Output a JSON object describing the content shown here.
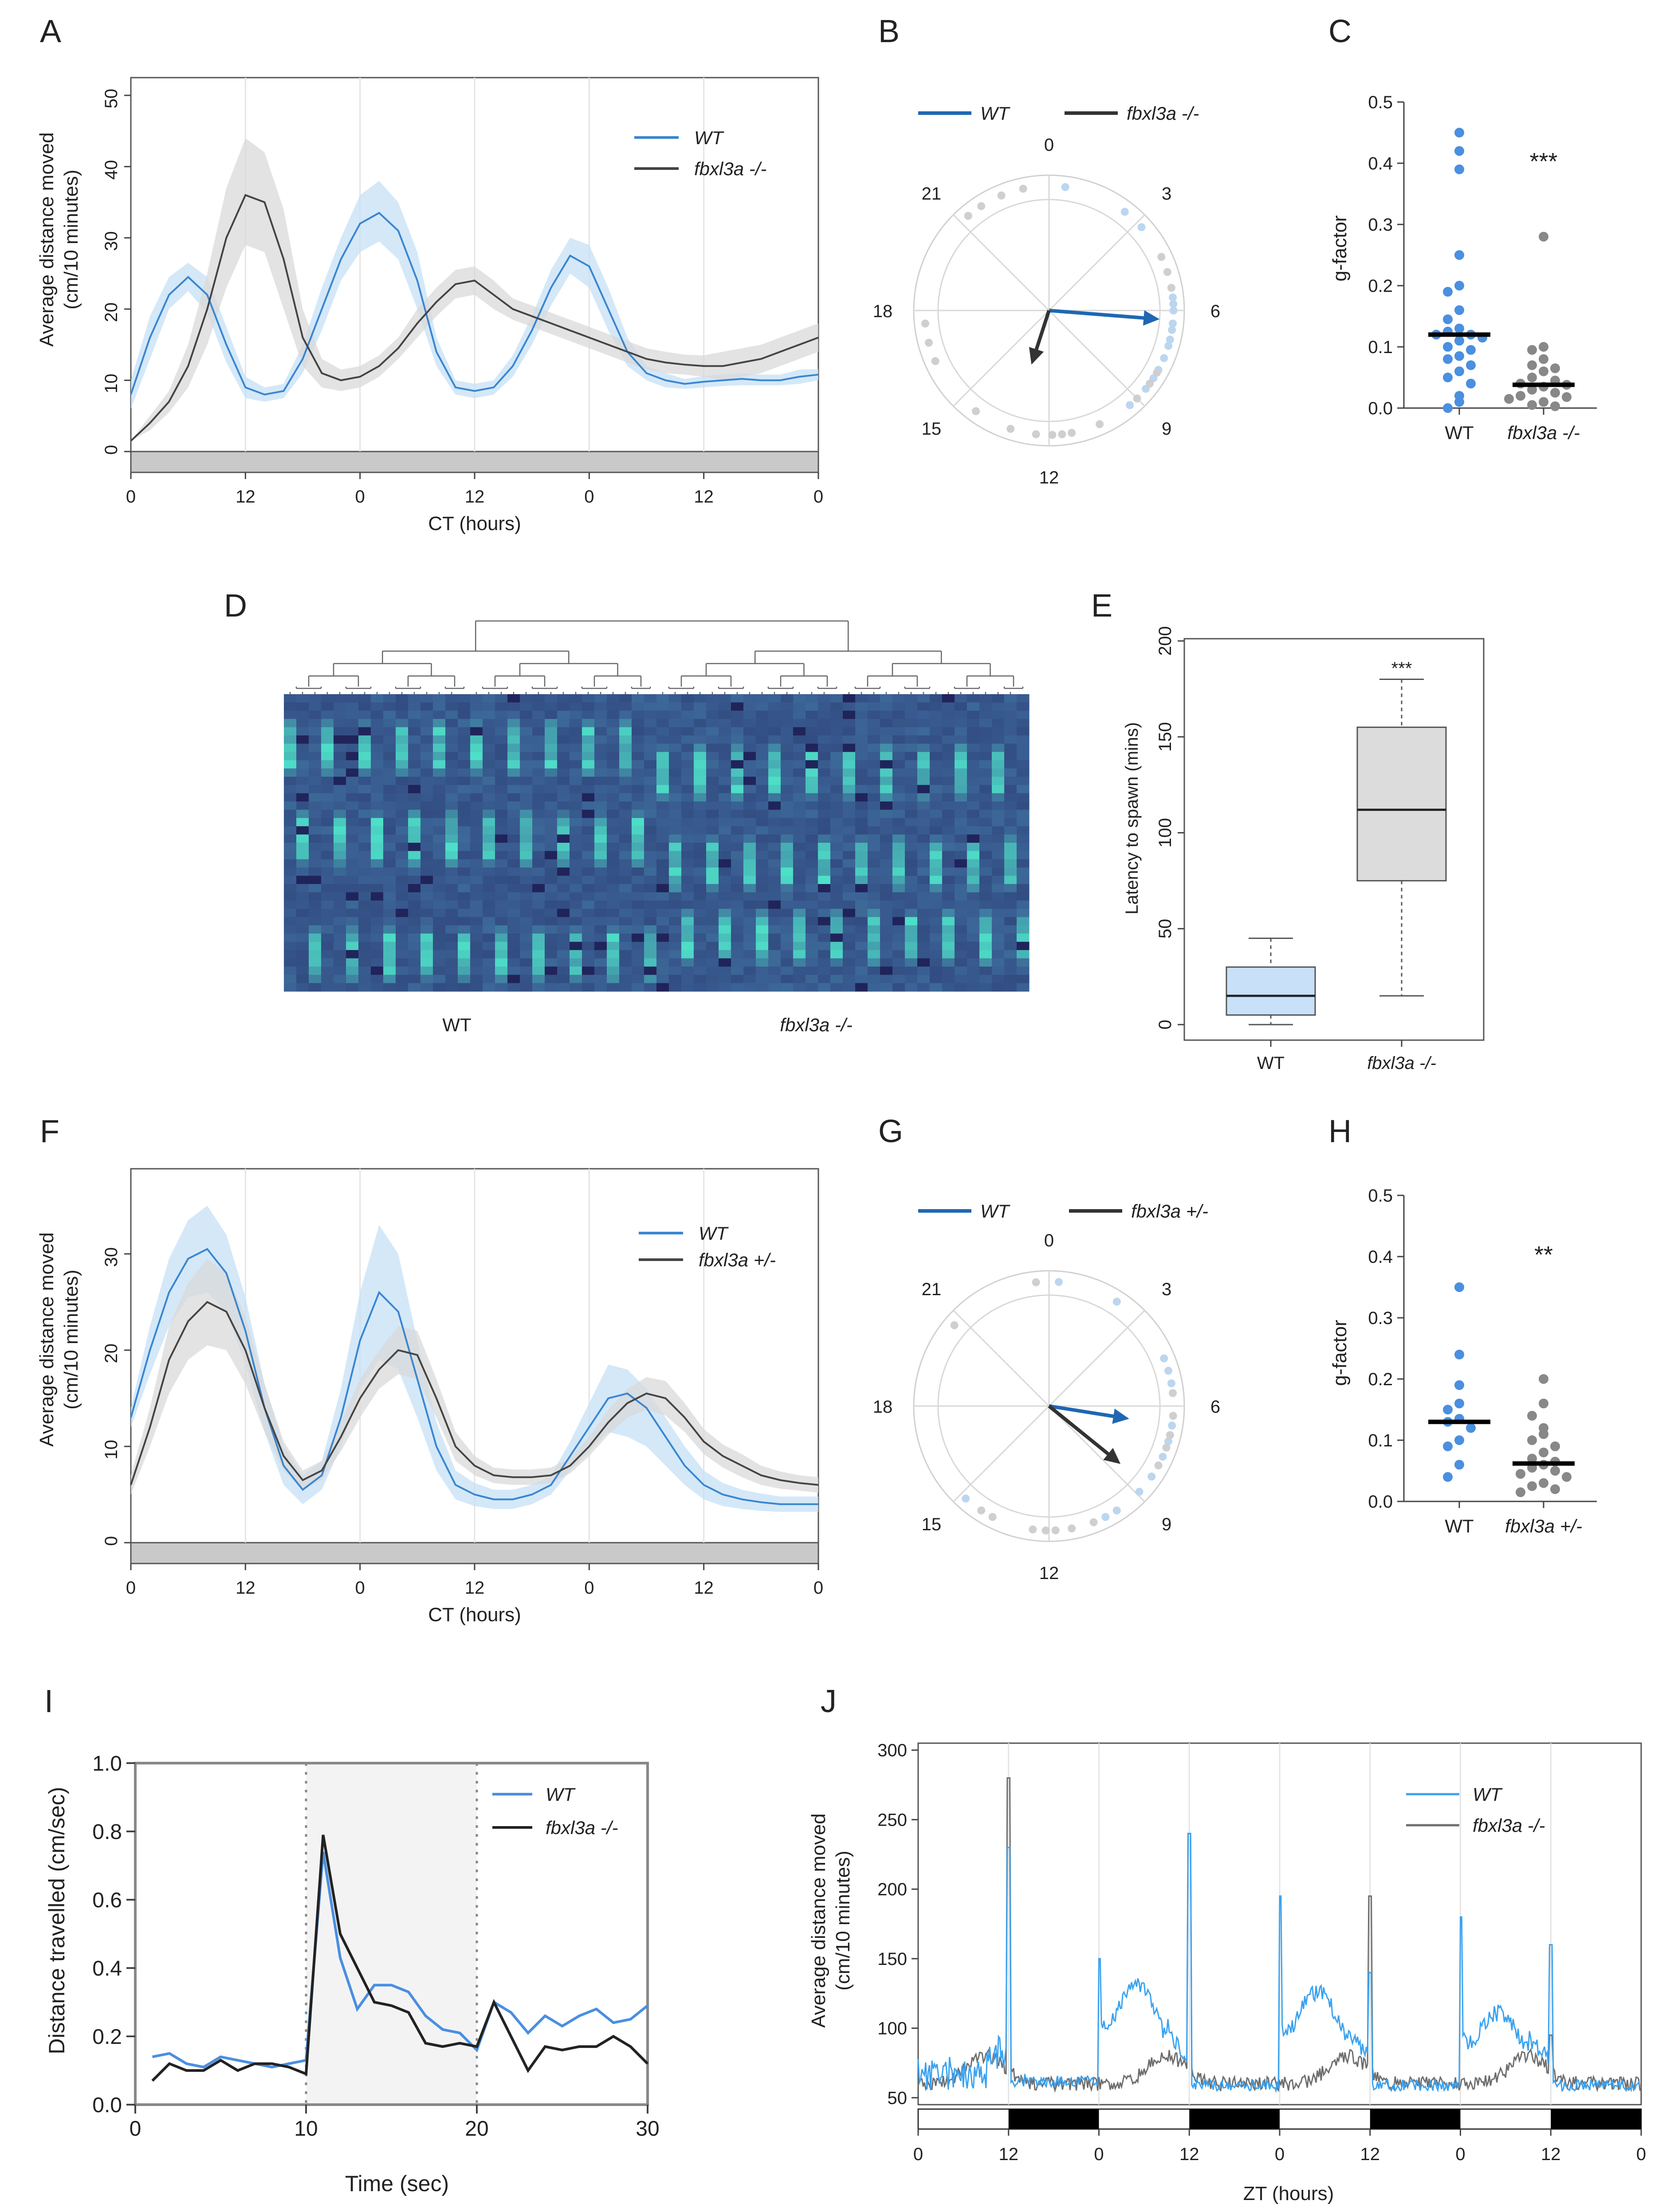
{
  "A": {
    "label": "A",
    "type": "line",
    "ylabel1": "Average distance moved",
    "ylabel2": "(cm/10 minutes)",
    "xlabel": "CT (hours)",
    "xticks": [
      "0",
      "12",
      "0",
      "12",
      "0",
      "12",
      "0"
    ],
    "yticks": [
      "0",
      "10",
      "20",
      "30",
      "40",
      "50"
    ],
    "ylim": [
      0,
      50
    ],
    "xlim": [
      0,
      72
    ],
    "series": [
      {
        "name": "WT",
        "color": "#3a86d0",
        "band": "#c6e0f6",
        "italic": true,
        "x": [
          0,
          2,
          4,
          6,
          8,
          10,
          12,
          14,
          16,
          18,
          20,
          22,
          24,
          26,
          28,
          30,
          32,
          34,
          36,
          38,
          40,
          42,
          44,
          46,
          48,
          50,
          52,
          54,
          56,
          58,
          60,
          62,
          64,
          66,
          68,
          70,
          72
        ],
        "y": [
          8,
          16,
          22,
          24.5,
          22,
          15,
          9,
          8,
          8.5,
          13,
          20,
          27,
          32,
          33.5,
          31,
          24,
          14,
          9,
          8.5,
          9,
          12,
          17,
          23,
          27.5,
          26,
          20,
          14,
          11,
          10,
          9.5,
          9.8,
          10,
          10.2,
          10,
          10,
          10.5,
          10.8
        ],
        "lo": [
          6,
          13,
          20,
          22.5,
          19.5,
          12.5,
          7.5,
          7,
          7.5,
          11,
          17,
          24,
          28,
          29.5,
          27,
          20,
          12,
          8,
          7.5,
          8,
          10.5,
          15,
          20.5,
          25,
          23,
          17,
          12,
          10,
          9,
          8.8,
          9,
          9.2,
          9.3,
          9.3,
          9.3,
          9.5,
          10
        ],
        "hi": [
          10,
          19,
          24.5,
          26.5,
          24.5,
          17.5,
          10.5,
          9,
          9.5,
          15,
          23,
          30,
          36,
          38,
          35,
          28,
          16,
          10,
          9.5,
          10,
          13.5,
          19,
          25.5,
          30,
          29,
          23,
          16,
          12,
          11,
          10.2,
          10.6,
          10.8,
          11,
          10.8,
          10.8,
          11.5,
          11.6
        ]
      },
      {
        "name": "fbxl3a -/-",
        "color": "#444444",
        "band": "#d9d9d9",
        "italic": true,
        "x": [
          0,
          2,
          4,
          6,
          8,
          10,
          12,
          14,
          16,
          18,
          20,
          22,
          24,
          26,
          28,
          30,
          32,
          34,
          36,
          38,
          40,
          42,
          44,
          46,
          48,
          50,
          52,
          54,
          56,
          58,
          60,
          62,
          64,
          66,
          68,
          70,
          72
        ],
        "y": [
          1.5,
          4,
          7,
          12,
          20,
          30,
          36,
          35,
          27,
          16,
          11,
          10,
          10.5,
          12,
          14.5,
          18,
          21,
          23.5,
          24,
          22,
          20,
          19,
          18,
          17,
          16,
          15,
          14,
          13,
          12.5,
          12.2,
          12,
          12,
          12.5,
          13,
          14,
          15,
          16
        ],
        "lo": [
          1.5,
          3,
          5.5,
          9,
          15,
          23,
          29,
          28,
          20,
          12,
          9,
          8.5,
          9,
          10.5,
          13,
          16,
          19,
          21.5,
          22,
          20,
          18.5,
          17.5,
          16.5,
          15.5,
          14.5,
          13.5,
          12.5,
          11.5,
          11,
          10.8,
          10.5,
          10,
          10.5,
          11,
          12,
          13,
          14
        ],
        "hi": [
          1.5,
          5,
          8.5,
          15,
          25,
          37,
          44,
          42,
          34,
          20,
          13,
          11.5,
          12,
          13.5,
          16,
          20,
          23,
          25.5,
          26,
          24,
          21.5,
          20.5,
          19.5,
          18.5,
          17.5,
          16.5,
          15.5,
          14.5,
          14,
          13.6,
          13.5,
          14,
          14.5,
          15,
          16,
          17,
          18
        ]
      }
    ]
  },
  "B": {
    "label": "B",
    "type": "polar",
    "legend": [
      {
        "name": "WT",
        "color": "#1f67b3"
      },
      {
        "name": "fbxl3a -/-",
        "color": "#333333"
      }
    ],
    "hour_labels": [
      "0",
      "3",
      "6",
      "9",
      "12",
      "15",
      "18",
      "21"
    ],
    "arrows": [
      {
        "series": "WT",
        "color": "#1f67b3",
        "phase_h": 6.3,
        "length": 0.82
      },
      {
        "series": "fbxl3a -/-",
        "color": "#333333",
        "phase_h": 13.2,
        "length": 0.42
      }
    ],
    "points": [
      {
        "series": "WT",
        "h": [
          0.5,
          2.5,
          3.2,
          5.6,
          5.8,
          6.0,
          6.4,
          6.6,
          6.9,
          7.1,
          7.5,
          7.9,
          8.2,
          8.6,
          9.3,
          22.5
        ],
        "color": "#bcd6ef"
      },
      {
        "series": "fbxl3a -/-",
        "h": [
          4.3,
          4.8,
          5.3,
          8.0,
          8.4,
          9.0,
          10.4,
          11.3,
          11.6,
          11.9,
          12.4,
          13.2,
          14.4,
          16.4,
          17.0,
          17.6,
          21.3,
          21.8,
          22.5,
          23.2
        ],
        "color": "#cfcfcf"
      }
    ]
  },
  "C": {
    "label": "C",
    "type": "scatter",
    "ylabel": "g-factor",
    "yticks": [
      "0.0",
      "0.1",
      "0.2",
      "0.3",
      "0.4",
      "0.5"
    ],
    "ylim": [
      0,
      0.5
    ],
    "categories": [
      "WT",
      "fbxl3a -/-"
    ],
    "significance": "***",
    "groups": [
      {
        "name": "WT",
        "color": "#4a8fe0",
        "median": 0.12,
        "values": [
          0.45,
          0.42,
          0.39,
          0.25,
          0.2,
          0.19,
          0.16,
          0.145,
          0.13,
          0.125,
          0.12,
          0.12,
          0.115,
          0.11,
          0.1,
          0.095,
          0.085,
          0.08,
          0.07,
          0.06,
          0.05,
          0.04,
          0.02,
          0.01,
          0.0
        ]
      },
      {
        "name": "fbxl3a -/-",
        "color": "#888888",
        "median": 0.038,
        "values": [
          0.28,
          0.1,
          0.095,
          0.08,
          0.07,
          0.065,
          0.06,
          0.05,
          0.045,
          0.04,
          0.038,
          0.035,
          0.03,
          0.025,
          0.02,
          0.018,
          0.015,
          0.01,
          0.005,
          0.003
        ]
      }
    ]
  },
  "D": {
    "label": "D",
    "type": "heatmap",
    "xlabels": [
      "WT",
      "fbxl3a -/-"
    ],
    "rows": 36,
    "cols": 60,
    "wt_cols": 30,
    "colors": {
      "low": "#1d1d55",
      "mid": "#3a5f93",
      "high": "#4ee0c8"
    }
  },
  "E": {
    "label": "E",
    "type": "box",
    "ylabel": "Latency to spawn (mins)",
    "yticks": [
      "0",
      "50",
      "100",
      "150",
      "200"
    ],
    "ylim": [
      0,
      200
    ],
    "categories": [
      "WT",
      "fbxl3a -/-"
    ],
    "significance": "***",
    "boxes": [
      {
        "name": "WT",
        "color": "#c8e1f8",
        "min": 0,
        "q1": 5,
        "median": 15,
        "q3": 30,
        "max": 45
      },
      {
        "name": "fbxl3a -/-",
        "color": "#dcdcdc",
        "min": 15,
        "q1": 75,
        "median": 112,
        "q3": 155,
        "max": 180
      }
    ]
  },
  "F": {
    "label": "F",
    "type": "line",
    "ylabel1": "Average distance moved",
    "ylabel2": "(cm/10 minutes)",
    "xlabel": "CT (hours)",
    "xticks": [
      "0",
      "12",
      "0",
      "12",
      "0",
      "12",
      "0"
    ],
    "yticks": [
      "0",
      "10",
      "20",
      "30"
    ],
    "ylim": [
      0,
      37
    ],
    "xlim": [
      0,
      72
    ],
    "series": [
      {
        "name": "WT",
        "color": "#3a86d0",
        "band": "#c6e0f6",
        "italic": true,
        "x": [
          0,
          2,
          4,
          6,
          8,
          10,
          12,
          14,
          16,
          18,
          20,
          22,
          24,
          26,
          28,
          30,
          32,
          34,
          36,
          38,
          40,
          42,
          44,
          46,
          48,
          50,
          52,
          54,
          56,
          58,
          60,
          62,
          64,
          66,
          68,
          70,
          72
        ],
        "y": [
          13,
          20,
          26,
          29.5,
          30.5,
          28,
          22,
          14,
          8,
          5.5,
          7,
          13,
          21,
          26,
          24,
          17,
          10,
          6,
          5,
          4.5,
          4.5,
          5,
          6,
          9,
          12,
          15,
          15.5,
          14,
          11,
          8,
          6,
          5,
          4.5,
          4.2,
          4,
          4,
          4
        ],
        "lo": [
          12,
          17.5,
          22.5,
          25.5,
          26,
          24,
          18.5,
          11.5,
          6,
          4,
          5.5,
          10,
          16,
          19,
          18,
          13,
          7.5,
          4.5,
          3.8,
          3.5,
          3.5,
          4,
          5,
          7.5,
          9.5,
          11.5,
          11,
          10,
          8,
          6,
          4.5,
          3.8,
          3.5,
          3.3,
          3.2,
          3.2,
          3.2
        ],
        "hi": [
          14,
          22.5,
          29.5,
          33.5,
          35,
          32,
          25.5,
          16.5,
          10,
          7,
          8.5,
          16,
          26,
          33,
          30,
          21,
          12.5,
          7.5,
          6.2,
          5.5,
          5.5,
          6,
          7,
          10.5,
          14.5,
          18.5,
          18,
          16,
          13,
          10,
          7.5,
          6.2,
          5.5,
          5.1,
          4.8,
          4.8,
          4.8
        ]
      },
      {
        "name": "fbxl3a +/-",
        "color": "#444444",
        "band": "#d9d9d9",
        "italic": true,
        "x": [
          0,
          2,
          4,
          6,
          8,
          10,
          12,
          14,
          16,
          18,
          20,
          22,
          24,
          26,
          28,
          30,
          32,
          34,
          36,
          38,
          40,
          42,
          44,
          46,
          48,
          50,
          52,
          54,
          56,
          58,
          60,
          62,
          64,
          66,
          68,
          70,
          72
        ],
        "y": [
          6,
          12,
          19,
          23,
          25,
          24,
          20,
          14,
          9,
          6.5,
          7.5,
          11,
          15,
          18,
          20,
          19.5,
          15,
          10,
          8,
          7,
          6.8,
          6.8,
          7,
          8,
          10,
          12.5,
          14.5,
          15.5,
          15,
          13,
          10.5,
          9,
          8,
          7,
          6.5,
          6.2,
          6
        ],
        "lo": [
          5,
          10,
          15.5,
          19,
          20.5,
          20,
          16.5,
          11.5,
          7.5,
          5.5,
          6.5,
          9.5,
          13,
          16,
          17.5,
          17,
          13,
          8.5,
          7,
          6.2,
          6,
          6,
          6.2,
          7.2,
          9,
          11.2,
          13,
          13.8,
          13.2,
          11.5,
          9.2,
          7.8,
          6.8,
          6,
          5.6,
          5.4,
          5.2
        ],
        "hi": [
          7,
          14,
          22.5,
          27,
          29.5,
          28,
          23.5,
          16.5,
          10.5,
          7.5,
          8.5,
          12.5,
          17,
          20,
          22.5,
          22,
          17,
          11.5,
          9,
          7.8,
          7.6,
          7.6,
          7.8,
          8.8,
          11,
          13.8,
          16,
          17.2,
          16.8,
          14.5,
          11.8,
          10.2,
          9.2,
          8,
          7.4,
          7,
          6.8
        ]
      }
    ]
  },
  "G": {
    "label": "G",
    "type": "polar",
    "legend": [
      {
        "name": "WT",
        "color": "#1f67b3"
      },
      {
        "name": "fbxl3a +/-",
        "color": "#333333"
      }
    ],
    "hour_labels": [
      "0",
      "3",
      "6",
      "9",
      "12",
      "15",
      "18",
      "21"
    ],
    "arrows": [
      {
        "series": "WT",
        "color": "#1f67b3",
        "phase_h": 6.6,
        "length": 0.6
      },
      {
        "series": "fbxl3a +/-",
        "color": "#333333",
        "phase_h": 8.6,
        "length": 0.68
      }
    ],
    "points": [
      {
        "series": "WT",
        "h": [
          0.3,
          2.2,
          4.5,
          4.9,
          5.3,
          6.6,
          7.1,
          7.6,
          8.3,
          8.9,
          9.8,
          10.2,
          14.8
        ],
        "color": "#bcd6ef"
      },
      {
        "series": "fbxl3a +/-",
        "h": [
          5.6,
          6.3,
          6.9,
          7.3,
          7.9,
          10.6,
          11.3,
          11.8,
          12.1,
          12.5,
          13.8,
          14.2,
          20.7,
          23.6
        ],
        "color": "#cfcfcf"
      }
    ]
  },
  "H": {
    "label": "H",
    "type": "scatter",
    "ylabel": "g-factor",
    "yticks": [
      "0.0",
      "0.1",
      "0.2",
      "0.3",
      "0.4",
      "0.5"
    ],
    "ylim": [
      0,
      0.5
    ],
    "categories": [
      "WT",
      "fbxl3a +/-"
    ],
    "significance": "**",
    "groups": [
      {
        "name": "WT",
        "color": "#4a8fe0",
        "median": 0.13,
        "values": [
          0.35,
          0.24,
          0.19,
          0.16,
          0.15,
          0.135,
          0.13,
          0.12,
          0.1,
          0.09,
          0.06,
          0.04
        ]
      },
      {
        "name": "fbxl3a +/-",
        "color": "#888888",
        "median": 0.062,
        "values": [
          0.2,
          0.16,
          0.14,
          0.12,
          0.11,
          0.1,
          0.09,
          0.08,
          0.07,
          0.065,
          0.06,
          0.055,
          0.05,
          0.045,
          0.04,
          0.03,
          0.025,
          0.02,
          0.015
        ]
      }
    ]
  },
  "I": {
    "label": "I",
    "type": "line",
    "ylabel": "Distance travelled (cm/sec)",
    "xlabel": "Time (sec)",
    "xticks": [
      "0",
      "10",
      "20",
      "30"
    ],
    "yticks": [
      "0.0",
      "0.2",
      "0.4",
      "0.6",
      "0.8",
      "1.0"
    ],
    "xlim": [
      0,
      30
    ],
    "ylim": [
      0,
      1.0
    ],
    "shaded": [
      10,
      20
    ],
    "series": [
      {
        "name": "WT",
        "color": "#4a8fe0",
        "italic": true,
        "x": [
          1,
          2,
          3,
          4,
          5,
          6,
          7,
          8,
          9,
          10,
          11,
          12,
          13,
          14,
          15,
          16,
          17,
          18,
          19,
          20,
          21,
          22,
          23,
          24,
          25,
          26,
          27,
          28,
          29,
          30
        ],
        "y": [
          0.14,
          0.15,
          0.12,
          0.11,
          0.14,
          0.13,
          0.12,
          0.11,
          0.12,
          0.13,
          0.74,
          0.43,
          0.28,
          0.35,
          0.35,
          0.33,
          0.26,
          0.22,
          0.21,
          0.16,
          0.3,
          0.27,
          0.21,
          0.26,
          0.23,
          0.26,
          0.28,
          0.24,
          0.25,
          0.29
        ]
      },
      {
        "name": "fbxl3a -/-",
        "color": "#222222",
        "italic": true,
        "x": [
          1,
          2,
          3,
          4,
          5,
          6,
          7,
          8,
          9,
          10,
          11,
          12,
          13,
          14,
          15,
          16,
          17,
          18,
          19,
          20,
          21,
          22,
          23,
          24,
          25,
          26,
          27,
          28,
          29,
          30
        ],
        "y": [
          0.07,
          0.12,
          0.1,
          0.1,
          0.13,
          0.1,
          0.12,
          0.12,
          0.11,
          0.09,
          0.79,
          0.5,
          0.4,
          0.3,
          0.29,
          0.27,
          0.18,
          0.17,
          0.18,
          0.17,
          0.3,
          0.2,
          0.1,
          0.17,
          0.16,
          0.17,
          0.17,
          0.2,
          0.17,
          0.12
        ]
      }
    ]
  },
  "J": {
    "label": "J",
    "type": "line",
    "ylabel1": "Average distance moved",
    "ylabel2": "(cm/10 minutes)",
    "xlabel": "ZT (hours)",
    "xticks": [
      "0",
      "12",
      "0",
      "12",
      "0",
      "12",
      "0",
      "12",
      "0"
    ],
    "yticks": [
      "50",
      "100",
      "150",
      "200",
      "250",
      "300"
    ],
    "xlim": [
      0,
      96
    ],
    "ylim": [
      45,
      305
    ],
    "dark_periods": [
      [
        12,
        24
      ],
      [
        36,
        48
      ],
      [
        60,
        72
      ],
      [
        84,
        96
      ]
    ],
    "series": [
      {
        "name": "WT",
        "color": "#3aa2f0",
        "italic": true
      },
      {
        "name": "fbxl3a -/-",
        "color": "#6e6e6e",
        "italic": true
      }
    ]
  }
}
